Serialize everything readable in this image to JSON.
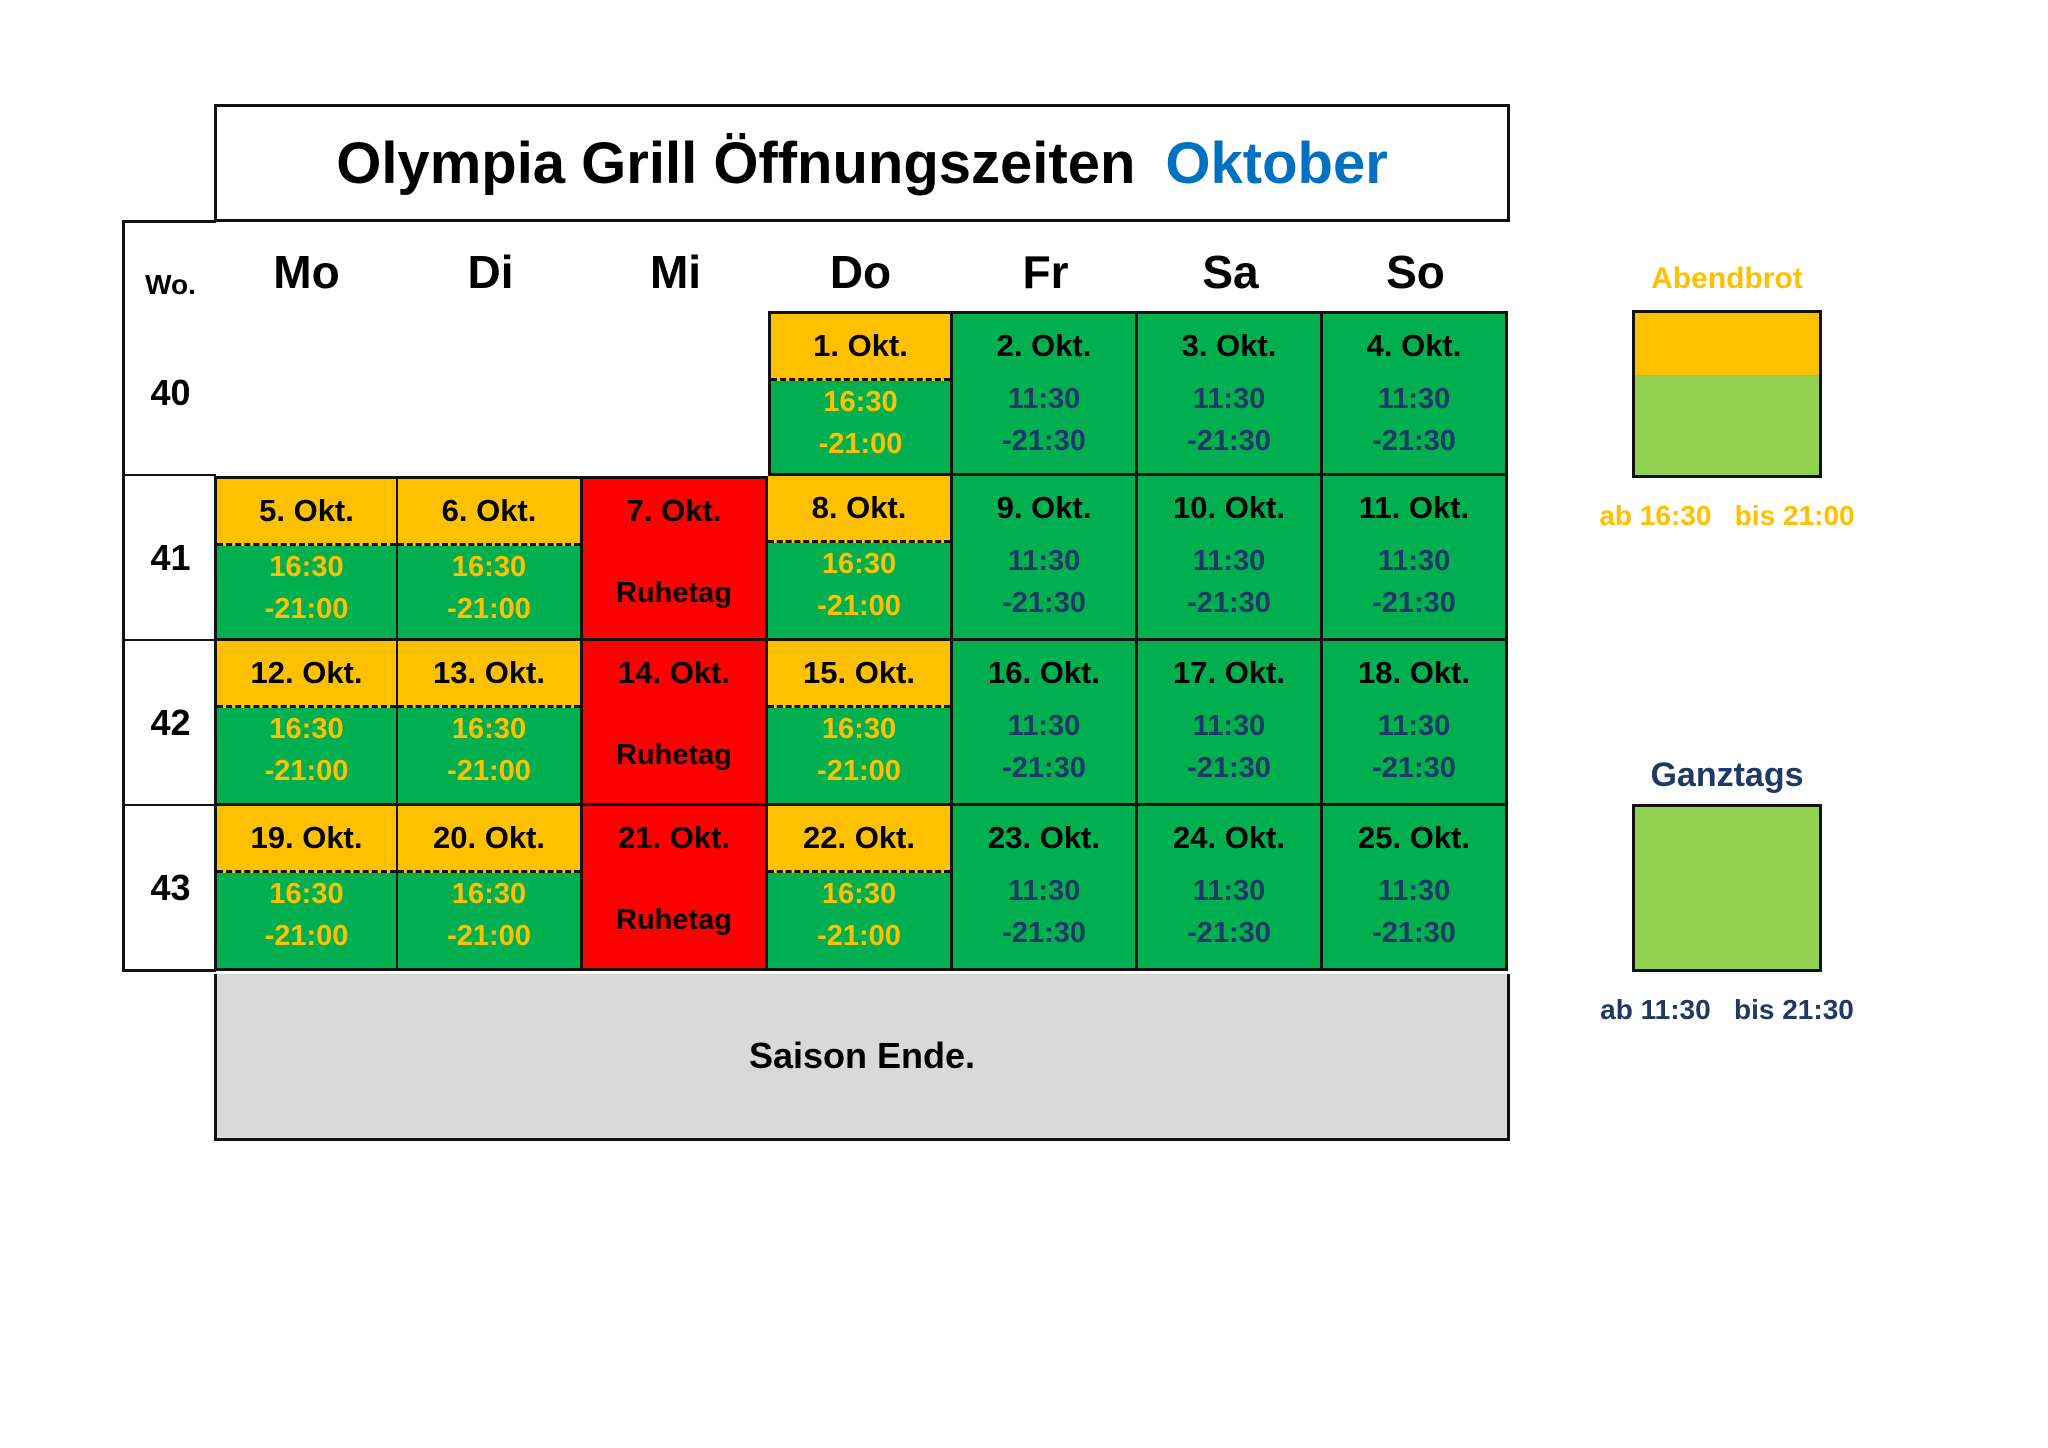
{
  "title": {
    "main": "Olympia Grill Öffnungszeiten",
    "month": "Oktober"
  },
  "colors": {
    "month": "#0070c0",
    "abendbrot": "#ffc000",
    "ganztags_dark": "#1f3864",
    "green": "#00b050",
    "legend_green": "#92d050",
    "red": "#ff0000",
    "saison_bg": "#d9d9d9"
  },
  "week_header": "Wo.",
  "days": [
    "Mo",
    "Di",
    "Mi",
    "Do",
    "Fr",
    "Sa",
    "So"
  ],
  "weeks": [
    {
      "no": "40",
      "cells": [
        null,
        null,
        null,
        {
          "type": "abend",
          "date": "1. Okt.",
          "t1": "16:30",
          "t2": "-21:00"
        },
        {
          "type": "ganz",
          "date": "2. Okt.",
          "t1": "11:30",
          "t2": "-21:30"
        },
        {
          "type": "ganz",
          "date": "3. Okt.",
          "t1": "11:30",
          "t2": "-21:30"
        },
        {
          "type": "ganz",
          "date": "4. Okt.",
          "t1": "11:30",
          "t2": "-21:30"
        }
      ]
    },
    {
      "no": "41",
      "cells": [
        {
          "type": "abend",
          "date": "5. Okt.",
          "t1": "16:30",
          "t2": "-21:00"
        },
        {
          "type": "abend",
          "date": "6. Okt.",
          "t1": "16:30",
          "t2": "-21:00"
        },
        {
          "type": "ruhe",
          "date": "7. Okt.",
          "rest": "Ruhetag"
        },
        {
          "type": "abend",
          "date": "8. Okt.",
          "t1": "16:30",
          "t2": "-21:00"
        },
        {
          "type": "ganz",
          "date": "9. Okt.",
          "t1": "11:30",
          "t2": "-21:30"
        },
        {
          "type": "ganz",
          "date": "10. Okt.",
          "t1": "11:30",
          "t2": "-21:30"
        },
        {
          "type": "ganz",
          "date": "11. Okt.",
          "t1": "11:30",
          "t2": "-21:30"
        }
      ]
    },
    {
      "no": "42",
      "cells": [
        {
          "type": "abend",
          "date": "12. Okt.",
          "t1": "16:30",
          "t2": "-21:00"
        },
        {
          "type": "abend",
          "date": "13. Okt.",
          "t1": "16:30",
          "t2": "-21:00"
        },
        {
          "type": "ruhe",
          "date": "14. Okt.",
          "rest": "Ruhetag"
        },
        {
          "type": "abend",
          "date": "15. Okt.",
          "t1": "16:30",
          "t2": "-21:00"
        },
        {
          "type": "ganz",
          "date": "16. Okt.",
          "t1": "11:30",
          "t2": "-21:30"
        },
        {
          "type": "ganz",
          "date": "17. Okt.",
          "t1": "11:30",
          "t2": "-21:30"
        },
        {
          "type": "ganz",
          "date": "18. Okt.",
          "t1": "11:30",
          "t2": "-21:30"
        }
      ]
    },
    {
      "no": "43",
      "cells": [
        {
          "type": "abend",
          "date": "19. Okt.",
          "t1": "16:30",
          "t2": "-21:00"
        },
        {
          "type": "abend",
          "date": "20. Okt.",
          "t1": "16:30",
          "t2": "-21:00"
        },
        {
          "type": "ruhe",
          "date": "21. Okt.",
          "rest": "Ruhetag"
        },
        {
          "type": "abend",
          "date": "22. Okt.",
          "t1": "16:30",
          "t2": "-21:00"
        },
        {
          "type": "ganz",
          "date": "23. Okt.",
          "t1": "11:30",
          "t2": "-21:30"
        },
        {
          "type": "ganz",
          "date": "24. Okt.",
          "t1": "11:30",
          "t2": "-21:30"
        },
        {
          "type": "ganz",
          "date": "25. Okt.",
          "t1": "11:30",
          "t2": "-21:30"
        }
      ]
    }
  ],
  "saison": "Saison Ende.",
  "legend": {
    "abendbrot": {
      "title": "Abendbrot",
      "caption": "ab 16:30   bis 21:00"
    },
    "ganztags": {
      "title": "Ganztags",
      "caption": "ab 11:30   bis 21:30"
    }
  }
}
